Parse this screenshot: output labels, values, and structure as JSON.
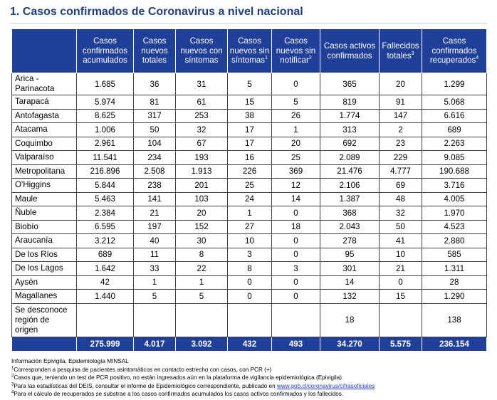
{
  "title": "1. Casos confirmados de Coronavirus a nivel nacional",
  "headers": [
    {
      "text": "",
      "sup": ""
    },
    {
      "text": "Casos confirmados acumulados",
      "sup": ""
    },
    {
      "text": "Casos nuevos totales",
      "sup": ""
    },
    {
      "text": "Casos nuevos con síntomas",
      "sup": ""
    },
    {
      "text": "Casos nuevos sin síntomas",
      "sup": "1"
    },
    {
      "text": "Casos nuevos sin notificar",
      "sup": "2"
    },
    {
      "text": "Casos activos confirmados",
      "sup": ""
    },
    {
      "text": "Fallecidos totales",
      "sup": "3"
    },
    {
      "text": "Casos confirmados recuperados",
      "sup": "4"
    }
  ],
  "rows": [
    [
      "Arica - Parinacota",
      "1.685",
      "36",
      "31",
      "5",
      "0",
      "365",
      "20",
      "1.299"
    ],
    [
      "Tarapacá",
      "5.974",
      "81",
      "61",
      "15",
      "5",
      "819",
      "91",
      "5.068"
    ],
    [
      "Antofagasta",
      "8.625",
      "317",
      "253",
      "38",
      "26",
      "1.774",
      "147",
      "6.616"
    ],
    [
      "Atacama",
      "1.006",
      "50",
      "32",
      "17",
      "1",
      "313",
      "2",
      "689"
    ],
    [
      "Coquimbo",
      "2.961",
      "104",
      "67",
      "17",
      "20",
      "692",
      "23",
      "2.263"
    ],
    [
      "Valparaíso",
      "11.541",
      "234",
      "193",
      "16",
      "25",
      "2.089",
      "229",
      "9.085"
    ],
    [
      "Metropolitana",
      "216.896",
      "2.508",
      "1.913",
      "226",
      "369",
      "21.476",
      "4.777",
      "190.688"
    ],
    [
      "O'Higgins",
      "5.844",
      "238",
      "201",
      "25",
      "12",
      "2.106",
      "69",
      "3.716"
    ],
    [
      "Maule",
      "5.463",
      "141",
      "103",
      "24",
      "14",
      "1.387",
      "48",
      "4.005"
    ],
    [
      "Ñuble",
      "2.384",
      "21",
      "20",
      "1",
      "0",
      "368",
      "32",
      "1.970"
    ],
    [
      "Biobío",
      "6.595",
      "197",
      "152",
      "27",
      "18",
      "2.043",
      "50",
      "4.523"
    ],
    [
      "Araucanía",
      "3.212",
      "40",
      "30",
      "10",
      "0",
      "278",
      "41",
      "2.880"
    ],
    [
      "De los Ríos",
      "689",
      "11",
      "8",
      "3",
      "0",
      "95",
      "10",
      "585"
    ],
    [
      "De los Lagos",
      "1.642",
      "33",
      "22",
      "8",
      "3",
      "301",
      "21",
      "1.311"
    ],
    [
      "Aysén",
      "42",
      "1",
      "1",
      "0",
      "0",
      "14",
      "0",
      "28"
    ],
    [
      "Magallanes",
      "1.440",
      "5",
      "5",
      "0",
      "0",
      "132",
      "15",
      "1.290"
    ],
    [
      "Se desconoce región de origen",
      "",
      "",
      "",
      "",
      "",
      "18",
      "",
      "138"
    ]
  ],
  "totals": [
    "",
    "275.999",
    "4.017",
    "3.092",
    "432",
    "493",
    "34.270",
    "5.575",
    "236.154"
  ],
  "notes": {
    "source": "Información Epivigila, Epidemiología MINSAL",
    "n1": {
      "sup": "1",
      "text": "Corresponden a pesquisa de pacientes asintomáticos en contacto estrecho con casos, con PCR (+)"
    },
    "n2": {
      "sup": "2",
      "text": "Casos que, teniendo un test de PCR positivo, no están ingresados aún en la plataforma de vigilancia epidemiológica (Epivigila)"
    },
    "n3": {
      "sup": "3",
      "text": "Para las estadísticas del DEIS, consultar el informe de Epidemiológico correspondiente, publicado en ",
      "link": "www.gob.cl/coronavirus/cifrasoficiales"
    },
    "n4": {
      "sup": "4",
      "text": "Para el cálculo de recuperados se substrae a los casos confirmados acumulados los casos activos confirmados y los fallecidos."
    }
  },
  "colors": {
    "header_bg": "#1f3f99",
    "title": "#1f3f7a",
    "link": "#1f3fbf"
  }
}
